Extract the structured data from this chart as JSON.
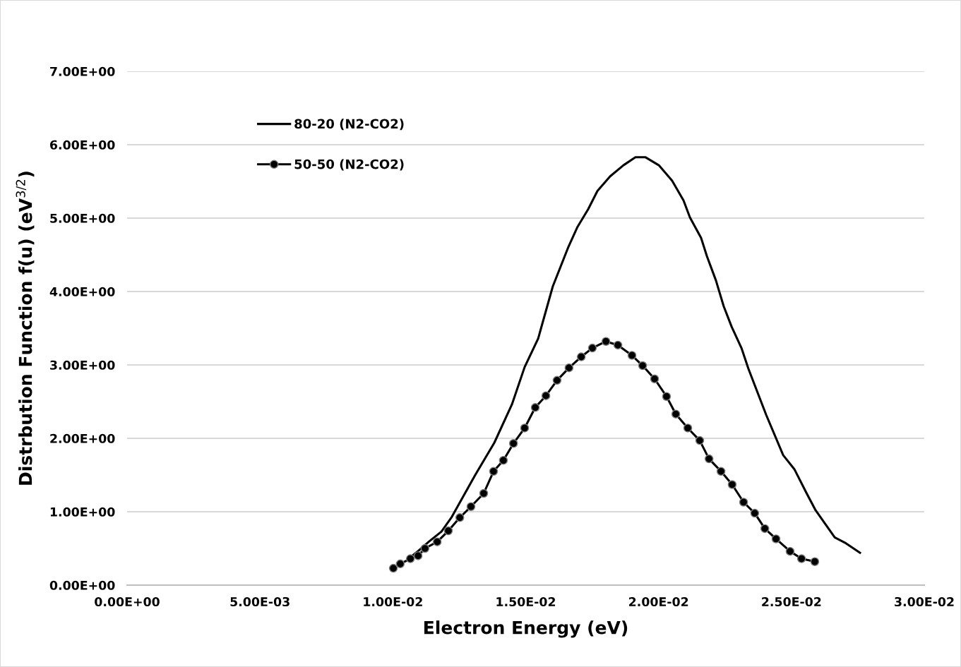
{
  "chart_data": {
    "type": "line",
    "xlabel": "Electron Energy (eV)",
    "ylabel": "Distrbution Function f(u) (eV$^{3/2}$)",
    "xlim": [
      0,
      0.03
    ],
    "ylim": [
      0,
      7
    ],
    "xticks": [
      {
        "value": 0,
        "label": "0.00E+00"
      },
      {
        "value": 0.005,
        "label": "5.00E-03"
      },
      {
        "value": 0.01,
        "label": "1.00E-02"
      },
      {
        "value": 0.015,
        "label": "1.50E-02"
      },
      {
        "value": 0.02,
        "label": "2.00E-02"
      },
      {
        "value": 0.025,
        "label": "2.50E-02"
      },
      {
        "value": 0.03,
        "label": "3.00E-02"
      }
    ],
    "yticks": [
      {
        "value": 0,
        "label": "0.00E+00"
      },
      {
        "value": 1,
        "label": "1.00E+00"
      },
      {
        "value": 2,
        "label": "2.00E+00"
      },
      {
        "value": 3,
        "label": "3.00E+00"
      },
      {
        "value": 4,
        "label": "4.00E+00"
      },
      {
        "value": 5,
        "label": "5.00E+00"
      },
      {
        "value": 6,
        "label": "6.00E+00"
      },
      {
        "value": 7,
        "label": "7.00E+00"
      }
    ],
    "grid": "y",
    "legend": "top left",
    "line_style": "solid",
    "series": [
      {
        "name": "80-20 (N2-CO2)",
        "color": "#000000",
        "marker": "none",
        "x": [
          0.01063,
          0.01097,
          0.01135,
          0.01183,
          0.01222,
          0.0131,
          0.01382,
          0.01448,
          0.01496,
          0.01547,
          0.01602,
          0.01661,
          0.01695,
          0.01735,
          0.0177,
          0.01818,
          0.01868,
          0.01913,
          0.0195,
          0.02001,
          0.02051,
          0.02094,
          0.02118,
          0.0216,
          0.02182,
          0.02216,
          0.02245,
          0.02275,
          0.02312,
          0.02338,
          0.02373,
          0.02405,
          0.02469,
          0.02511,
          0.02556,
          0.02591,
          0.02663,
          0.02705,
          0.02758
        ],
        "values": [
          0.37,
          0.47,
          0.59,
          0.73,
          0.93,
          1.5,
          1.94,
          2.46,
          2.97,
          3.36,
          4.07,
          4.61,
          4.88,
          5.12,
          5.37,
          5.57,
          5.72,
          5.83,
          5.83,
          5.72,
          5.51,
          5.24,
          5.01,
          4.73,
          4.48,
          4.15,
          3.8,
          3.52,
          3.23,
          2.95,
          2.62,
          2.32,
          1.77,
          1.58,
          1.26,
          1.02,
          0.65,
          0.57,
          0.44
        ]
      },
      {
        "name": "50-50 (N2-CO2)",
        "color": "#000000",
        "marker": "circle",
        "x": [
          0.01002,
          0.01028,
          0.01066,
          0.01095,
          0.01121,
          0.01167,
          0.01209,
          0.01252,
          0.01294,
          0.01342,
          0.01379,
          0.01416,
          0.01454,
          0.01496,
          0.01536,
          0.01576,
          0.01618,
          0.01663,
          0.01709,
          0.01751,
          0.01802,
          0.01847,
          0.019,
          0.0194,
          0.01985,
          0.0203,
          0.02065,
          0.0211,
          0.02155,
          0.0219,
          0.02235,
          0.02277,
          0.0232,
          0.02362,
          0.024,
          0.02442,
          0.02495,
          0.02538,
          0.02588
        ],
        "values": [
          0.23,
          0.29,
          0.36,
          0.4,
          0.5,
          0.59,
          0.74,
          0.92,
          1.07,
          1.25,
          1.55,
          1.7,
          1.93,
          2.14,
          2.42,
          2.58,
          2.79,
          2.96,
          3.11,
          3.23,
          3.32,
          3.27,
          3.13,
          2.99,
          2.81,
          2.57,
          2.33,
          2.14,
          1.97,
          1.72,
          1.55,
          1.37,
          1.13,
          0.98,
          0.77,
          0.63,
          0.46,
          0.36,
          0.32
        ]
      }
    ]
  }
}
